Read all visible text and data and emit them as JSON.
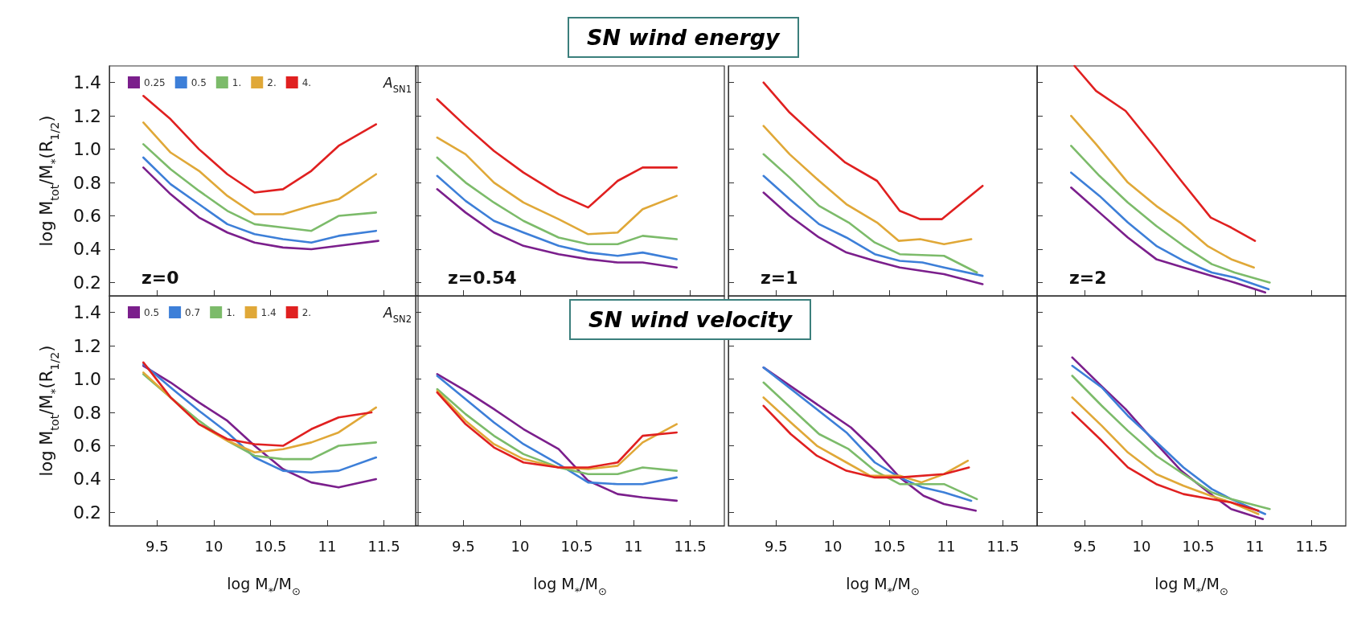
{
  "chart_data": [
    {
      "type": "line",
      "ylabel": "log M$_{tot}$/M$_{*}$(R$_{1/2}$)",
      "legend_title": "A$_{SN1}$",
      "legend": "top",
      "tick_labels": "y",
      "annotations": [
        "z=0",
        "SN wind energy"
      ],
      "xlim": [
        9.08,
        11.8
      ],
      "ylim": [
        0.12,
        1.5
      ],
      "xticks": [
        9.5,
        10,
        10.5,
        11,
        11.5
      ],
      "yticks": [
        0.2,
        0.4,
        0.6,
        0.8,
        {
          "value": 1,
          "label": "1.0"
        },
        1.2,
        1.4
      ],
      "grid": false,
      "series": [
        {
          "name": "0.25",
          "color": "#7b1f8c",
          "x": [
            9.38,
            9.62,
            9.87,
            10.12,
            10.36,
            10.61,
            10.86,
            11.1,
            11.45
          ],
          "values": [
            0.89,
            0.73,
            0.59,
            0.5,
            0.44,
            0.41,
            0.4,
            0.42,
            0.45
          ]
        },
        {
          "name": "0.5",
          "color": "#3d7fd8",
          "x": [
            9.38,
            9.62,
            9.87,
            10.12,
            10.36,
            10.61,
            10.86,
            11.1,
            11.43
          ],
          "values": [
            0.95,
            0.79,
            0.67,
            0.55,
            0.49,
            0.46,
            0.44,
            0.48,
            0.51
          ]
        },
        {
          "name": "1.",
          "color": "#7cbb6a",
          "x": [
            9.38,
            9.62,
            9.87,
            10.12,
            10.36,
            10.61,
            10.86,
            11.1,
            11.43
          ],
          "values": [
            1.03,
            0.88,
            0.75,
            0.63,
            0.55,
            0.53,
            0.51,
            0.6,
            0.62
          ]
        },
        {
          "name": "2.",
          "color": "#e0a838",
          "x": [
            9.38,
            9.62,
            9.87,
            10.12,
            10.36,
            10.61,
            10.86,
            11.1,
            11.43
          ],
          "values": [
            1.16,
            0.98,
            0.87,
            0.72,
            0.61,
            0.61,
            0.66,
            0.7,
            0.85
          ]
        },
        {
          "name": "4.",
          "color": "#e02020",
          "x": [
            9.38,
            9.62,
            9.87,
            10.12,
            10.36,
            10.61,
            10.86,
            11.1,
            11.43
          ],
          "values": [
            1.32,
            1.18,
            1.0,
            0.85,
            0.74,
            0.76,
            0.87,
            1.02,
            1.15
          ]
        }
      ]
    },
    {
      "type": "line",
      "tick_labels": false,
      "annotations": [
        "z=0.54"
      ],
      "xlim": [
        9.08,
        11.8
      ],
      "ylim": [
        0.12,
        1.5
      ],
      "xticks": [
        9.5,
        10,
        10.5,
        11,
        11.5
      ],
      "yticks": [
        0.2,
        0.4,
        0.6,
        0.8,
        1.0,
        1.2,
        1.4
      ],
      "grid": false,
      "series": [
        {
          "color": "#7b1f8c",
          "x": [
            9.27,
            9.52,
            9.77,
            10.03,
            10.34,
            10.6,
            10.86,
            11.08,
            11.38
          ],
          "values": [
            0.76,
            0.62,
            0.5,
            0.42,
            0.37,
            0.34,
            0.32,
            0.32,
            0.29
          ]
        },
        {
          "color": "#3d7fd8",
          "x": [
            9.27,
            9.52,
            9.77,
            10.03,
            10.34,
            10.6,
            10.86,
            11.08,
            11.38
          ],
          "values": [
            0.84,
            0.69,
            0.57,
            0.5,
            0.42,
            0.38,
            0.36,
            0.38,
            0.34
          ]
        },
        {
          "color": "#7cbb6a",
          "x": [
            9.27,
            9.52,
            9.77,
            10.03,
            10.34,
            10.6,
            10.86,
            11.08,
            11.38
          ],
          "values": [
            0.95,
            0.8,
            0.68,
            0.57,
            0.47,
            0.43,
            0.43,
            0.48,
            0.46
          ]
        },
        {
          "color": "#e0a838",
          "x": [
            9.27,
            9.52,
            9.77,
            10.03,
            10.34,
            10.6,
            10.86,
            11.08,
            11.38
          ],
          "values": [
            1.07,
            0.97,
            0.8,
            0.68,
            0.58,
            0.49,
            0.5,
            0.64,
            0.72
          ]
        },
        {
          "color": "#e02020",
          "x": [
            9.27,
            9.52,
            9.77,
            10.03,
            10.34,
            10.6,
            10.86,
            11.08,
            11.38
          ],
          "values": [
            1.3,
            1.14,
            0.99,
            0.86,
            0.73,
            0.65,
            0.81,
            0.89,
            0.89
          ]
        }
      ]
    },
    {
      "type": "line",
      "tick_labels": false,
      "annotations": [
        "z=1"
      ],
      "xlim": [
        9.08,
        11.8
      ],
      "ylim": [
        0.12,
        1.5
      ],
      "xticks": [
        9.5,
        10,
        10.5,
        11,
        11.5
      ],
      "yticks": [
        0.2,
        0.4,
        0.6,
        0.8,
        1.0,
        1.2,
        1.4
      ],
      "grid": false,
      "series": [
        {
          "color": "#7b1f8c",
          "x": [
            9.39,
            9.62,
            9.88,
            10.12,
            10.37,
            10.59,
            10.79,
            10.98,
            11.32
          ],
          "values": [
            0.74,
            0.6,
            0.47,
            0.38,
            0.33,
            0.29,
            0.27,
            0.25,
            0.19
          ]
        },
        {
          "color": "#3d7fd8",
          "x": [
            9.39,
            9.62,
            9.88,
            10.12,
            10.37,
            10.59,
            10.79,
            10.98,
            11.32
          ],
          "values": [
            0.84,
            0.7,
            0.55,
            0.47,
            0.37,
            0.33,
            0.32,
            0.29,
            0.24
          ]
        },
        {
          "color": "#7cbb6a",
          "x": [
            9.39,
            9.62,
            9.88,
            10.14,
            10.37,
            10.59,
            10.98,
            11.27
          ],
          "values": [
            0.97,
            0.83,
            0.66,
            0.56,
            0.44,
            0.37,
            0.36,
            0.26
          ]
        },
        {
          "color": "#e0a838",
          "x": [
            9.39,
            9.62,
            9.88,
            10.12,
            10.39,
            10.58,
            10.77,
            10.98,
            11.22
          ],
          "values": [
            1.14,
            0.97,
            0.81,
            0.67,
            0.56,
            0.45,
            0.46,
            0.43,
            0.46
          ]
        },
        {
          "color": "#e02020",
          "x": [
            9.39,
            9.62,
            9.86,
            10.11,
            10.39,
            10.59,
            10.77,
            10.96,
            11.32
          ],
          "values": [
            1.4,
            1.22,
            1.07,
            0.92,
            0.81,
            0.63,
            0.58,
            0.58,
            0.78
          ]
        }
      ]
    },
    {
      "type": "line",
      "tick_labels": false,
      "annotations": [
        "z=2"
      ],
      "xlim": [
        9.08,
        11.8
      ],
      "ylim": [
        0.12,
        1.5
      ],
      "xticks": [
        9.5,
        10,
        10.5,
        11,
        11.5
      ],
      "yticks": [
        0.2,
        0.4,
        0.6,
        0.8,
        1.0,
        1.2,
        1.4
      ],
      "grid": false,
      "series": [
        {
          "color": "#7b1f8c",
          "x": [
            9.38,
            9.63,
            9.88,
            10.13,
            10.37,
            10.62,
            10.82,
            11.09
          ],
          "values": [
            0.77,
            0.62,
            0.47,
            0.34,
            0.29,
            0.24,
            0.2,
            0.14
          ]
        },
        {
          "color": "#3d7fd8",
          "x": [
            9.38,
            9.63,
            9.88,
            10.13,
            10.37,
            10.62,
            10.82,
            11.12
          ],
          "values": [
            0.86,
            0.72,
            0.56,
            0.42,
            0.33,
            0.26,
            0.23,
            0.16
          ]
        },
        {
          "color": "#7cbb6a",
          "x": [
            9.38,
            9.63,
            9.88,
            10.13,
            10.37,
            10.62,
            10.82,
            11.13
          ],
          "values": [
            1.02,
            0.84,
            0.68,
            0.54,
            0.42,
            0.31,
            0.26,
            0.2
          ]
        },
        {
          "color": "#e0a838",
          "x": [
            9.38,
            9.6,
            9.88,
            10.13,
            10.34,
            10.58,
            10.79,
            10.99
          ],
          "values": [
            1.2,
            1.03,
            0.8,
            0.66,
            0.56,
            0.42,
            0.34,
            0.29
          ]
        },
        {
          "color": "#e02020",
          "x": [
            9.41,
            9.6,
            9.86,
            10.12,
            10.35,
            10.61,
            10.79,
            11.0
          ],
          "values": [
            1.5,
            1.35,
            1.23,
            1.01,
            0.81,
            0.59,
            0.53,
            0.45
          ]
        }
      ]
    },
    {
      "type": "line",
      "xlabel": "log M$_{*}$/M$_{⊙}$",
      "ylabel": "log M$_{tot}$/M$_{*}$(R$_{1/2}$)",
      "legend_title": "A$_{SN2}$",
      "legend": "top",
      "annotations": [
        "SN wind velocity"
      ],
      "xlim": [
        9.08,
        11.8
      ],
      "ylim": [
        0.12,
        1.5
      ],
      "xticks": [
        9.5,
        10,
        10.5,
        11,
        11.5
      ],
      "yticks": [
        0.2,
        0.4,
        0.6,
        0.8,
        {
          "value": 1,
          "label": "1.0"
        },
        1.2,
        1.4
      ],
      "grid": false,
      "series": [
        {
          "name": "0.5",
          "color": "#7b1f8c",
          "x": [
            9.38,
            9.62,
            9.87,
            10.12,
            10.36,
            10.61,
            10.86,
            11.1,
            11.43
          ],
          "values": [
            1.08,
            0.98,
            0.86,
            0.75,
            0.6,
            0.46,
            0.38,
            0.35,
            0.4
          ]
        },
        {
          "name": "0.7",
          "color": "#3d7fd8",
          "x": [
            9.38,
            9.62,
            9.87,
            10.12,
            10.36,
            10.61,
            10.86,
            11.1,
            11.43
          ],
          "values": [
            1.09,
            0.95,
            0.81,
            0.68,
            0.53,
            0.45,
            0.44,
            0.45,
            0.53
          ]
        },
        {
          "name": "1.",
          "color": "#7cbb6a",
          "x": [
            9.38,
            9.62,
            9.87,
            10.12,
            10.36,
            10.61,
            10.86,
            11.1,
            11.43
          ],
          "values": [
            1.03,
            0.89,
            0.75,
            0.63,
            0.54,
            0.52,
            0.52,
            0.6,
            0.62
          ]
        },
        {
          "name": "1.4",
          "color": "#e0a838",
          "x": [
            9.38,
            9.62,
            9.87,
            10.12,
            10.36,
            10.61,
            10.86,
            11.1,
            11.43
          ],
          "values": [
            1.04,
            0.89,
            0.73,
            0.63,
            0.56,
            0.58,
            0.62,
            0.68,
            0.83
          ]
        },
        {
          "name": "2.",
          "color": "#e02020",
          "x": [
            9.38,
            9.62,
            9.87,
            10.12,
            10.36,
            10.61,
            10.86,
            11.1,
            11.39
          ],
          "values": [
            1.1,
            0.89,
            0.73,
            0.64,
            0.61,
            0.6,
            0.7,
            0.77,
            0.8
          ]
        }
      ]
    },
    {
      "type": "line",
      "xlabel": "log M$_{*}$/M$_{⊙}$",
      "tick_labels": "x",
      "xlim": [
        9.08,
        11.8
      ],
      "ylim": [
        0.12,
        1.5
      ],
      "xticks": [
        9.5,
        10,
        10.5,
        11,
        11.5
      ],
      "yticks": [
        0.2,
        0.4,
        0.6,
        0.8,
        1.0,
        1.2,
        1.4
      ],
      "grid": false,
      "series": [
        {
          "color": "#7b1f8c",
          "x": [
            9.27,
            9.52,
            9.77,
            10.03,
            10.34,
            10.6,
            10.86,
            11.08,
            11.38
          ],
          "values": [
            1.03,
            0.93,
            0.82,
            0.7,
            0.58,
            0.39,
            0.31,
            0.29,
            0.27
          ]
        },
        {
          "color": "#3d7fd8",
          "x": [
            9.27,
            9.52,
            9.77,
            10.03,
            10.34,
            10.6,
            10.86,
            11.08,
            11.38
          ],
          "values": [
            1.02,
            0.88,
            0.74,
            0.61,
            0.49,
            0.38,
            0.37,
            0.37,
            0.41
          ]
        },
        {
          "color": "#7cbb6a",
          "x": [
            9.27,
            9.52,
            9.77,
            10.03,
            10.34,
            10.6,
            10.86,
            11.08,
            11.38
          ],
          "values": [
            0.94,
            0.79,
            0.66,
            0.55,
            0.47,
            0.43,
            0.43,
            0.47,
            0.45
          ]
        },
        {
          "color": "#e0a838",
          "x": [
            9.27,
            9.52,
            9.77,
            10.03,
            10.34,
            10.6,
            10.86,
            11.08,
            11.38
          ],
          "values": [
            0.93,
            0.75,
            0.61,
            0.52,
            0.47,
            0.46,
            0.48,
            0.62,
            0.73
          ]
        },
        {
          "color": "#e02020",
          "x": [
            9.27,
            9.52,
            9.77,
            10.03,
            10.34,
            10.6,
            10.86,
            11.08,
            11.38
          ],
          "values": [
            0.92,
            0.73,
            0.59,
            0.5,
            0.47,
            0.47,
            0.5,
            0.66,
            0.68
          ]
        }
      ]
    },
    {
      "type": "line",
      "xlabel": "log M$_{*}$/M$_{⊙}$",
      "tick_labels": "x",
      "xlim": [
        9.08,
        11.8
      ],
      "ylim": [
        0.12,
        1.5
      ],
      "xticks": [
        9.5,
        10,
        10.5,
        11,
        11.5
      ],
      "yticks": [
        0.2,
        0.4,
        0.6,
        0.8,
        1.0,
        1.2,
        1.4
      ],
      "grid": false,
      "series": [
        {
          "color": "#7b1f8c",
          "x": [
            9.39,
            9.88,
            10.16,
            10.39,
            10.59,
            10.8,
            10.98,
            11.26
          ],
          "values": [
            1.07,
            0.84,
            0.71,
            0.56,
            0.41,
            0.3,
            0.25,
            0.21
          ]
        },
        {
          "color": "#3d7fd8",
          "x": [
            9.39,
            10.12,
            10.37,
            10.59,
            10.79,
            10.98,
            11.22
          ],
          "values": [
            1.07,
            0.68,
            0.5,
            0.41,
            0.35,
            0.32,
            0.27
          ]
        },
        {
          "color": "#7cbb6a",
          "x": [
            9.39,
            9.88,
            10.14,
            10.37,
            10.59,
            10.78,
            10.98,
            11.27
          ],
          "values": [
            0.98,
            0.67,
            0.58,
            0.45,
            0.37,
            0.37,
            0.37,
            0.28
          ]
        },
        {
          "color": "#e0a838",
          "x": [
            9.39,
            9.63,
            9.86,
            10.12,
            10.33,
            10.59,
            10.78,
            10.98,
            11.19
          ],
          "values": [
            0.89,
            0.74,
            0.6,
            0.5,
            0.42,
            0.42,
            0.38,
            0.43,
            0.51
          ]
        },
        {
          "color": "#e02020",
          "x": [
            9.39,
            9.63,
            9.86,
            10.12,
            10.37,
            10.59,
            10.98,
            11.2
          ],
          "values": [
            0.84,
            0.67,
            0.54,
            0.45,
            0.41,
            0.41,
            0.43,
            0.47
          ]
        }
      ]
    },
    {
      "type": "line",
      "xlabel": "log M$_{*}$/M$_{⊙}$",
      "tick_labels": "x",
      "xlim": [
        9.08,
        11.8
      ],
      "ylim": [
        0.12,
        1.5
      ],
      "xticks": [
        9.5,
        10,
        10.5,
        11,
        11.5
      ],
      "yticks": [
        0.2,
        0.4,
        0.6,
        0.8,
        1.0,
        1.2,
        1.4
      ],
      "grid": false,
      "series": [
        {
          "color": "#7b1f8c",
          "x": [
            9.39,
            9.63,
            9.86,
            10.12,
            10.35,
            10.63,
            10.79,
            11.07
          ],
          "values": [
            1.13,
            0.97,
            0.82,
            0.62,
            0.45,
            0.3,
            0.22,
            0.16
          ]
        },
        {
          "color": "#3d7fd8",
          "x": [
            9.39,
            9.65,
            9.88,
            10.12,
            10.37,
            10.62,
            10.79,
            11.09
          ],
          "values": [
            1.08,
            0.95,
            0.78,
            0.63,
            0.47,
            0.34,
            0.28,
            0.19
          ]
        },
        {
          "color": "#7cbb6a",
          "x": [
            9.39,
            9.65,
            9.88,
            10.13,
            10.37,
            10.62,
            10.79,
            11.13
          ],
          "values": [
            1.02,
            0.84,
            0.69,
            0.54,
            0.43,
            0.32,
            0.28,
            0.22
          ]
        },
        {
          "color": "#e0a838",
          "x": [
            9.39,
            9.65,
            9.88,
            10.13,
            10.37,
            10.61,
            10.79,
            11.03
          ],
          "values": [
            0.89,
            0.72,
            0.56,
            0.43,
            0.36,
            0.3,
            0.26,
            0.19
          ]
        },
        {
          "color": "#e02020",
          "x": [
            9.39,
            9.65,
            9.88,
            10.13,
            10.37,
            10.61,
            10.79,
            11.03
          ],
          "values": [
            0.8,
            0.63,
            0.47,
            0.37,
            0.31,
            0.28,
            0.26,
            0.21
          ]
        }
      ]
    }
  ]
}
